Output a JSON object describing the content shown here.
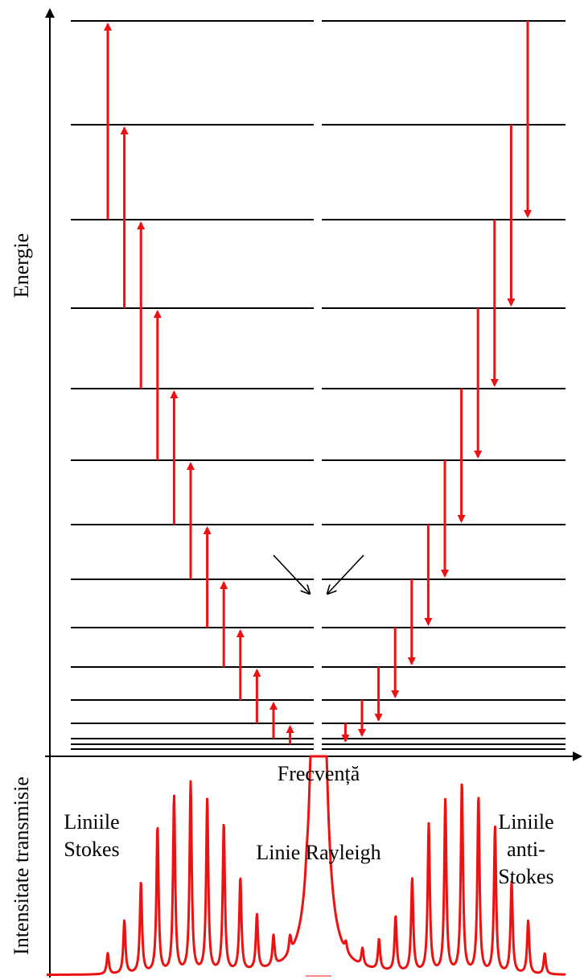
{
  "labels": {
    "energy_axis": "Energie",
    "frequency_axis": "Frecvență",
    "intensity_axis": "Intensitate transmisie",
    "stokes_line1": "Liniile",
    "stokes_line2": "Stokes",
    "rayleigh": "Linie Rayleigh",
    "anti_stokes_line1": "Liniile",
    "anti_stokes_line2": "anti-",
    "anti_stokes_line3": "Stokes"
  },
  "colors": {
    "arrow": "#ee1111",
    "spectrum": "#ee1111",
    "level": "#000000",
    "axis": "#000000"
  },
  "energy_levels_count": 13,
  "stokes_transitions": {
    "direction": "up",
    "count": 12
  },
  "anti_stokes_transitions": {
    "direction": "down",
    "count": 12
  },
  "spectrum": {
    "stokes_peaks": [
      0.11,
      0.28,
      0.48,
      0.77,
      0.93,
      1.0,
      0.91,
      0.78,
      0.49,
      0.29,
      0.16,
      0.09,
      0.05
    ],
    "rayleigh_peak": "off-scale",
    "anti_stokes_peaks": [
      0.05,
      0.09,
      0.16,
      0.29,
      0.49,
      0.78,
      0.91,
      1.0,
      0.93,
      0.77,
      0.48,
      0.28,
      0.11
    ]
  }
}
